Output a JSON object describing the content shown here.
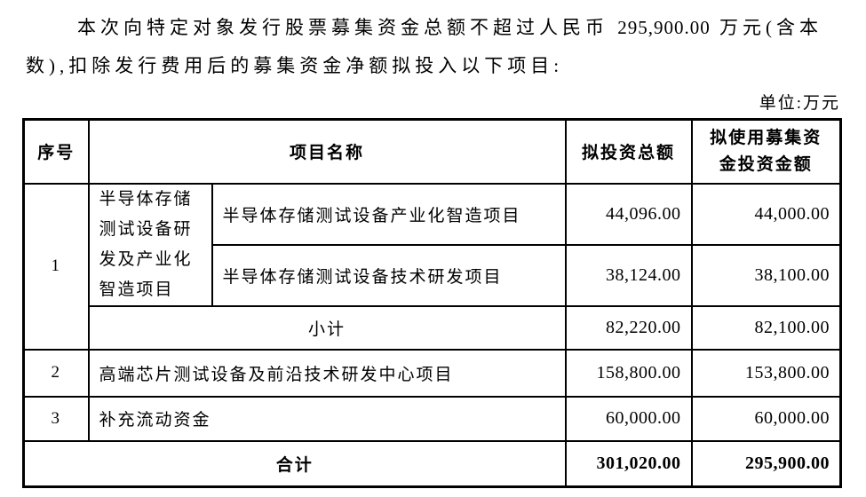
{
  "intro": {
    "line1_pre": "本次向特定对象发行股票募集资金总额不超过人民币 ",
    "line1_amount": "295,900.00",
    "line1_post": " 万元(含本",
    "line2": "数),扣除发行费用后的募集资金净额拟投入以下项目:"
  },
  "unit_label": "单位:万元",
  "table": {
    "headers": {
      "seq": "序号",
      "project": "项目名称",
      "total": "拟投资总额",
      "raised": "拟使用募集资金投资金额"
    },
    "group1": {
      "seq": "1",
      "name": "半导体存储测试设备研发及产业化智造项目",
      "subprojects": [
        {
          "name": "半导体存储测试设备产业化智造项目",
          "total": "44,096.00",
          "raised": "44,000.00"
        },
        {
          "name": "半导体存储测试设备技术研发项目",
          "total": "38,124.00",
          "raised": "38,100.00"
        }
      ],
      "subtotal": {
        "label": "小计",
        "total": "82,220.00",
        "raised": "82,100.00"
      }
    },
    "rows": [
      {
        "seq": "2",
        "name": "高端芯片测试设备及前沿技术研发中心项目",
        "total": "158,800.00",
        "raised": "153,800.00"
      },
      {
        "seq": "3",
        "name": "补充流动资金",
        "total": "60,000.00",
        "raised": "60,000.00"
      }
    ],
    "total": {
      "label": "合计",
      "total": "301,020.00",
      "raised": "295,900.00"
    }
  }
}
